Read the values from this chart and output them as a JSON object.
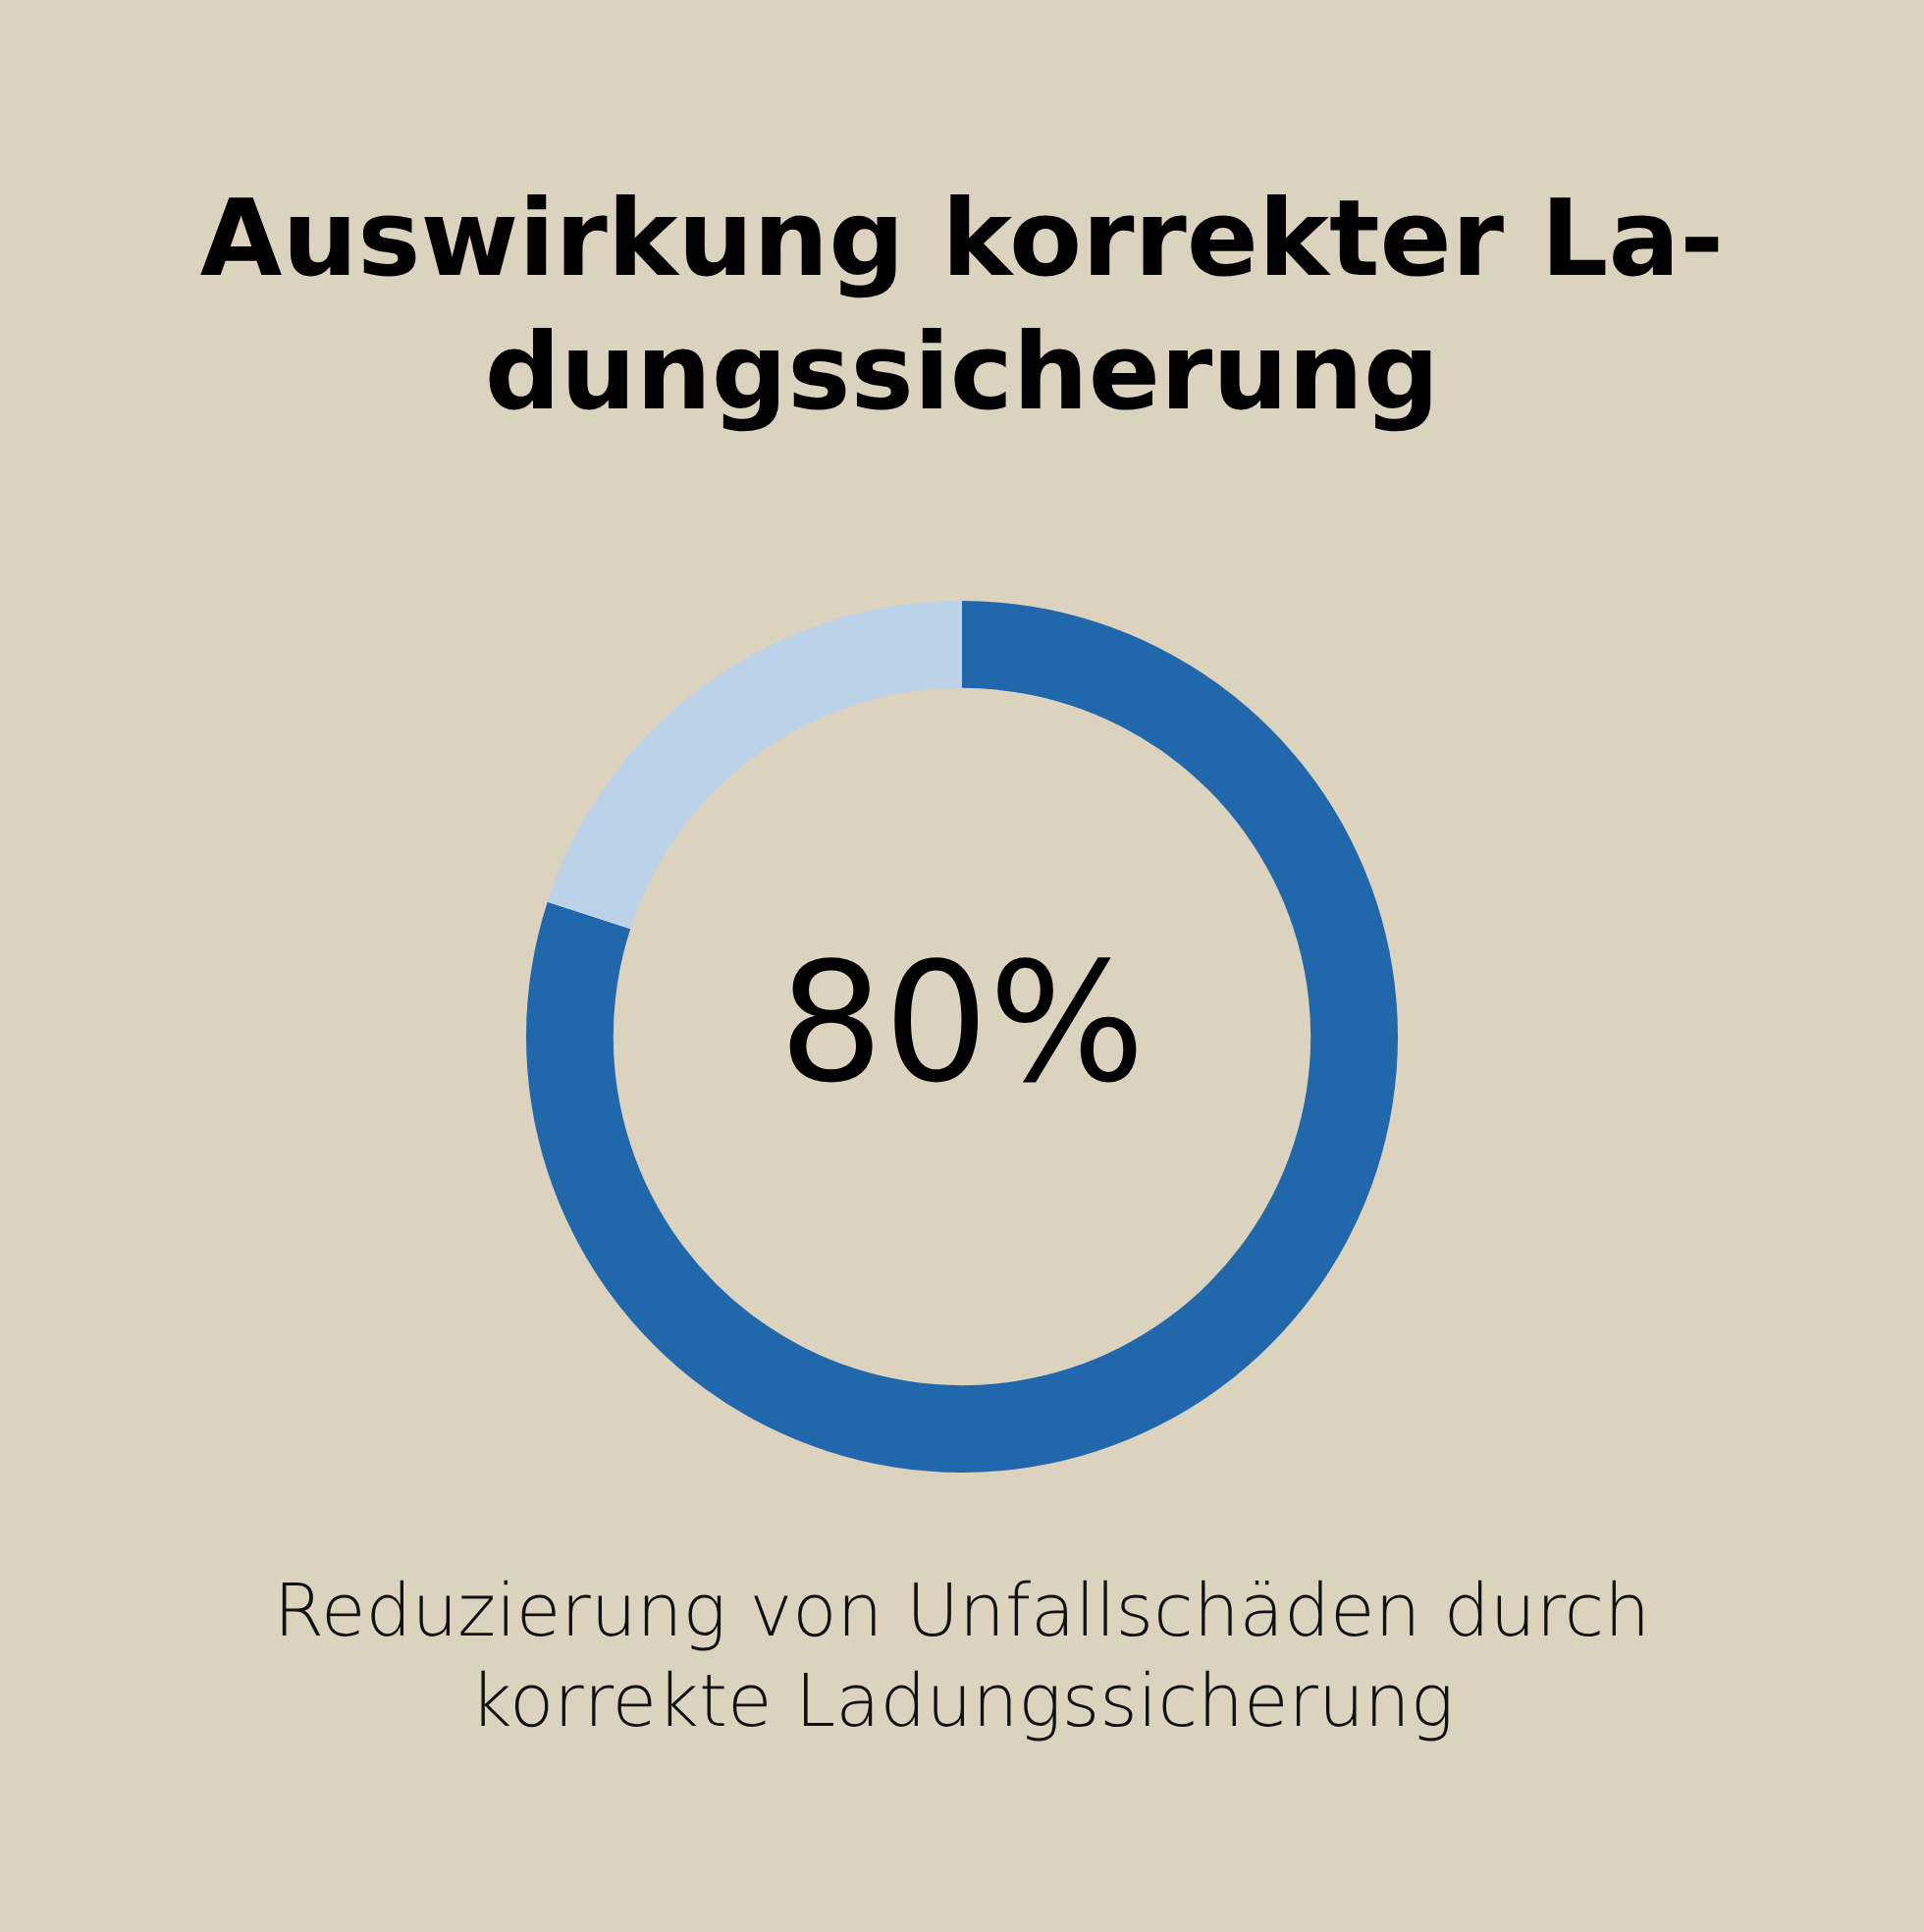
{
  "chart_data": {
    "type": "donut",
    "title": "Auswirkung korrekter La-dungssicherung",
    "categories": [
      null,
      null
    ],
    "values": [
      80,
      20
    ],
    "colors": [
      "#2067ab",
      "#bcd2e8"
    ],
    "value_labels": [
      "80%",
      null
    ],
    "legend": false,
    "annotations": [
      "Reduzierung von Unfallschäden durch korrekte Ladungssicherung"
    ]
  }
}
